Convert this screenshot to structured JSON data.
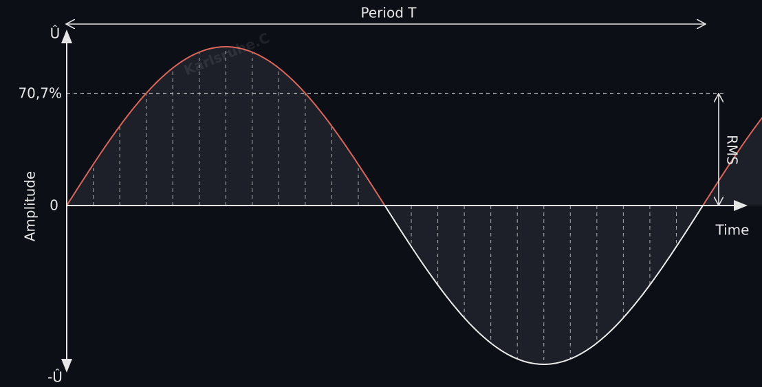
{
  "diagram": {
    "watermark": "Karlsruhe.C",
    "period_label": "Period T",
    "y_top_label": "Û",
    "rms_level_label": "70,7%",
    "zero_label": "0",
    "y_bottom_label": "-Û",
    "y_axis_label": "Amplitude",
    "x_axis_label": "Time",
    "rms_label": "RMS"
  }
}
